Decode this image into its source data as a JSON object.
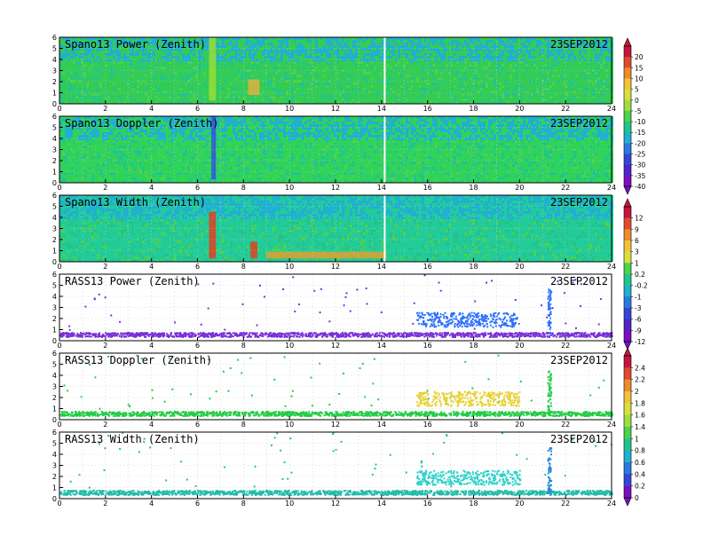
{
  "figure": {
    "date": "23SEP2012"
  },
  "chart_data": [
    {
      "type": "heatmap",
      "title": "Spano13 Power (Zenith)",
      "date": "23SEP2012",
      "x_ticks": [
        "0",
        "2",
        "4",
        "6",
        "8",
        "10",
        "12",
        "14",
        "16",
        "18",
        "20",
        "22",
        "24"
      ],
      "y_ticks": [
        "0",
        "1",
        "2",
        "3",
        "4",
        "5",
        "6"
      ],
      "xlim": [
        0,
        24
      ],
      "ylim": [
        0,
        6
      ],
      "colorbar": 1,
      "dominant_color": "#33cc55",
      "features": [
        {
          "x": [
            6.5,
            6.8
          ],
          "y": [
            0.3,
            6
          ],
          "color": "#99dd33"
        },
        {
          "x": [
            8.2,
            8.7
          ],
          "y": [
            0.8,
            2.2
          ],
          "color": "#e0b040"
        },
        {
          "x": [
            14.1,
            14.15
          ],
          "y": [
            0,
            6
          ],
          "color": "#ffffff"
        }
      ],
      "grid": true
    },
    {
      "type": "heatmap",
      "title": "Spano13 Doppler (Zenith)",
      "date": "23SEP2012",
      "x_ticks": [
        "0",
        "2",
        "4",
        "6",
        "8",
        "10",
        "12",
        "14",
        "16",
        "18",
        "20",
        "22",
        "24"
      ],
      "y_ticks": [
        "0",
        "1",
        "2",
        "3",
        "4",
        "5",
        "6"
      ],
      "xlim": [
        0,
        24
      ],
      "ylim": [
        0,
        6
      ],
      "colorbar": 1,
      "dominant_color": "#2ed35a",
      "features": [
        {
          "x": [
            6.6,
            6.8
          ],
          "y": [
            0.3,
            6
          ],
          "color": "#3355dd"
        },
        {
          "x": [
            14.1,
            14.15
          ],
          "y": [
            0,
            6
          ],
          "color": "#ffffff"
        }
      ],
      "grid": true
    },
    {
      "type": "heatmap",
      "title": "Spano13 Width (Zenith)",
      "date": "23SEP2012",
      "x_ticks": [
        "0",
        "2",
        "4",
        "6",
        "8",
        "10",
        "12",
        "14",
        "16",
        "18",
        "20",
        "22",
        "24"
      ],
      "y_ticks": [
        "0",
        "1",
        "2",
        "3",
        "4",
        "5",
        "6"
      ],
      "xlim": [
        0,
        24
      ],
      "ylim": [
        0,
        6
      ],
      "colorbar": 2,
      "dominant_color": "#22cc99",
      "features": [
        {
          "x": [
            6.5,
            6.8
          ],
          "y": [
            0.3,
            4.5
          ],
          "color": "#e04020"
        },
        {
          "x": [
            8.3,
            8.6
          ],
          "y": [
            0.3,
            1.8
          ],
          "color": "#e04020"
        },
        {
          "x": [
            9.0,
            14.2
          ],
          "y": [
            0.3,
            0.9
          ],
          "color": "#e0a030"
        },
        {
          "x": [
            14.1,
            14.15
          ],
          "y": [
            0,
            6
          ],
          "color": "#ffffff"
        }
      ],
      "grid": true
    },
    {
      "type": "scatter",
      "title": "RASS13 Power (Zenith)",
      "date": "23SEP2012",
      "x_ticks": [
        "0",
        "2",
        "4",
        "6",
        "8",
        "10",
        "12",
        "14",
        "16",
        "18",
        "20",
        "22",
        "24"
      ],
      "y_ticks": [
        "0",
        "1",
        "2",
        "3",
        "4",
        "5",
        "6"
      ],
      "xlim": [
        0,
        24
      ],
      "ylim": [
        0,
        6
      ],
      "colorbar": 2,
      "color_low": "#7a30d8",
      "color_high": "#2a70ff",
      "features": [
        {
          "x": [
            0,
            24
          ],
          "y": [
            0.4,
            0.8
          ],
          "color": "#7a30d8"
        },
        {
          "x": [
            15.5,
            20.0
          ],
          "y": [
            1.3,
            2.6
          ],
          "color": "#2a70ff"
        },
        {
          "x": [
            21.2,
            21.35
          ],
          "y": [
            0.4,
            4.7
          ],
          "color": "#2a70ff"
        }
      ],
      "grid": true
    },
    {
      "type": "scatter",
      "title": "RASS13 Doppler (Zenith)",
      "date": "23SEP2012",
      "x_ticks": [
        "0",
        "2",
        "4",
        "6",
        "8",
        "10",
        "12",
        "14",
        "16",
        "18",
        "20",
        "22",
        "24"
      ],
      "y_ticks": [
        "0",
        "1",
        "2",
        "3",
        "4",
        "5",
        "6"
      ],
      "xlim": [
        0,
        24
      ],
      "ylim": [
        0,
        6
      ],
      "colorbar": 3,
      "color_low": "#22cc44",
      "color_high": "#e8d030",
      "features": [
        {
          "x": [
            0,
            24
          ],
          "y": [
            0.4,
            0.8
          ],
          "color": "#22cc44"
        },
        {
          "x": [
            15.5,
            20.0
          ],
          "y": [
            1.3,
            2.6
          ],
          "color": "#e8d030"
        },
        {
          "x": [
            21.2,
            21.35
          ],
          "y": [
            0.4,
            4.7
          ],
          "color": "#22cc44"
        }
      ],
      "grid": true
    },
    {
      "type": "scatter",
      "title": "RASS13 Width (Zenith)",
      "date": "23SEP2012",
      "x_ticks": [
        "0",
        "2",
        "4",
        "6",
        "8",
        "10",
        "12",
        "14",
        "16",
        "18",
        "20",
        "22",
        "24"
      ],
      "y_ticks": [
        "0",
        "1",
        "2",
        "3",
        "4",
        "5",
        "6"
      ],
      "xlim": [
        0,
        24
      ],
      "ylim": [
        0,
        6
      ],
      "colorbar": 3,
      "color_low": "#22bbaa",
      "color_high": "#28d2c8",
      "features": [
        {
          "x": [
            0,
            24
          ],
          "y": [
            0.4,
            0.8
          ],
          "color": "#22bbaa"
        },
        {
          "x": [
            15.5,
            20.0
          ],
          "y": [
            1.3,
            2.6
          ],
          "color": "#28d2c8"
        },
        {
          "x": [
            21.2,
            21.35
          ],
          "y": [
            0.4,
            4.7
          ],
          "color": "#2288dd"
        }
      ],
      "grid": true
    }
  ],
  "colorbars": [
    {
      "labels": [
        "20",
        "15",
        "10",
        "5",
        "0",
        "-5",
        "-10",
        "-15",
        "-20",
        "-25",
        "-30",
        "-35",
        "-40"
      ],
      "colors": [
        "#c8143c",
        "#e04a30",
        "#ee8a30",
        "#f2c23a",
        "#d8e040",
        "#9ede40",
        "#4cd24c",
        "#22c48e",
        "#20b0d0",
        "#2a78e0",
        "#3446d8",
        "#5024c8",
        "#7a10c0"
      ]
    },
    {
      "labels": [
        "12",
        "9",
        "6",
        "3",
        "1",
        "0.2",
        "-0.2",
        "-1",
        "-3",
        "-6",
        "-9",
        "-12"
      ],
      "colors": [
        "#c8143c",
        "#e04a30",
        "#ee8a30",
        "#f2c23a",
        "#d8e040",
        "#4cd24c",
        "#22c48e",
        "#20b0d0",
        "#2a78e0",
        "#3446d8",
        "#5024c8",
        "#7a10c0"
      ]
    },
    {
      "labels": [
        "2.4",
        "2.2",
        "2",
        "1.8",
        "1.6",
        "1.4",
        "1",
        "0.8",
        "0.6",
        "0.4",
        "0.2",
        "0"
      ],
      "colors": [
        "#c8143c",
        "#e04a30",
        "#ee8a30",
        "#f2c23a",
        "#d8e040",
        "#9ede40",
        "#4cd24c",
        "#22c48e",
        "#20b0d0",
        "#2a78e0",
        "#3446d8",
        "#7a10c0"
      ]
    }
  ]
}
